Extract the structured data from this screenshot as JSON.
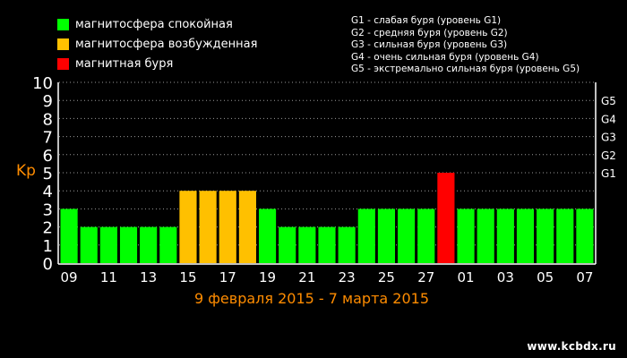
{
  "legend": [
    {
      "label": "магнитосфера спокойная",
      "color": "#00ff00"
    },
    {
      "label": "магнитосфера возбужденная",
      "color": "#ffc000"
    },
    {
      "label": "магнитная буря",
      "color": "#ff0000"
    }
  ],
  "storm_levels": [
    "G1 - слабая буря (уровень G1)",
    "G2 - средняя буря (уровень G2)",
    "G3 - сильная буря (уровень G3)",
    "G4 - очень сильная буря (уровень G4)",
    "G5 - экстремально сильная буря (уровень G5)"
  ],
  "site": "www.kcbdx.ru",
  "chart_data": {
    "type": "bar",
    "title": "9 февраля 2015 - 7 марта 2015",
    "ylabel": "Kp",
    "ylim": [
      0,
      10
    ],
    "yticks": [
      0,
      1,
      2,
      3,
      4,
      5,
      6,
      7,
      8,
      9,
      10
    ],
    "right_ticks": [
      {
        "label": "G1",
        "value": 5
      },
      {
        "label": "G2",
        "value": 6
      },
      {
        "label": "G3",
        "value": 7
      },
      {
        "label": "G4",
        "value": 8
      },
      {
        "label": "G5",
        "value": 9
      }
    ],
    "x_tick_labels": [
      "09",
      "11",
      "13",
      "15",
      "17",
      "19",
      "21",
      "23",
      "25",
      "27",
      "01",
      "03",
      "05",
      "07"
    ],
    "grid": true,
    "colors": {
      "quiet": "#00ff00",
      "active": "#ffc000",
      "storm": "#ff0000"
    },
    "values": [
      3,
      2,
      2,
      2,
      2,
      2,
      4,
      4,
      4,
      4,
      3,
      2,
      2,
      2,
      2,
      3,
      3,
      3,
      3,
      5,
      3,
      3,
      3,
      3,
      3,
      3,
      3
    ],
    "levels": [
      "quiet",
      "quiet",
      "quiet",
      "quiet",
      "quiet",
      "quiet",
      "active",
      "active",
      "active",
      "active",
      "quiet",
      "quiet",
      "quiet",
      "quiet",
      "quiet",
      "quiet",
      "quiet",
      "quiet",
      "quiet",
      "storm",
      "quiet",
      "quiet",
      "quiet",
      "quiet",
      "quiet",
      "quiet",
      "quiet"
    ]
  }
}
